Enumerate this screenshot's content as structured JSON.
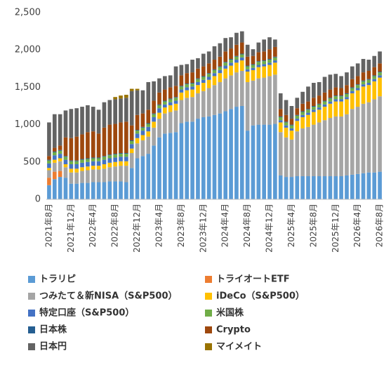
{
  "chart_data": {
    "type": "stacked_bar",
    "categories": [
      "2021年8月",
      null,
      null,
      null,
      "2021年12月",
      null,
      null,
      null,
      "2022年4月",
      null,
      null,
      null,
      "2022年8月",
      null,
      null,
      null,
      "2022年12月",
      null,
      null,
      null,
      "2023年4月",
      null,
      null,
      null,
      "2023年8月",
      null,
      null,
      null,
      "2023年12月",
      null,
      null,
      null,
      "2024年4月",
      null,
      null,
      null,
      "2024年8月",
      null,
      null,
      null,
      "2024年12月",
      null,
      null,
      null,
      "2025年4月",
      null,
      null,
      null,
      "2025年8月",
      null,
      null,
      null,
      "2025年12月",
      null,
      null,
      null,
      "2026年4月",
      null,
      null,
      null,
      "2026年8月"
    ],
    "ylim": [
      0,
      2500
    ],
    "yticks": [
      0,
      500,
      {
        "value": 1000,
        "label": "1,000"
      },
      {
        "value": 1500,
        "label": "1,500"
      },
      {
        "value": 2000,
        "label": "2,000"
      },
      {
        "value": 2500,
        "label": "2,500"
      }
    ],
    "grid": false,
    "legend": "bottom",
    "series": [
      {
        "name": "トラリピ",
        "color": "#5b9bd5",
        "values": [
          190,
          270,
          300,
          290,
          210,
          210,
          220,
          220,
          230,
          230,
          230,
          240,
          240,
          240,
          230,
          420,
          550,
          580,
          610,
          720,
          830,
          880,
          890,
          900,
          1020,
          1040,
          1040,
          1080,
          1100,
          1110,
          1130,
          1150,
          1180,
          1210,
          1240,
          1250,
          920,
          990,
          1000,
          1000,
          1000,
          1010,
          320,
          300,
          300,
          310,
          310,
          310,
          310,
          310,
          310,
          310,
          310,
          310,
          320,
          330,
          340,
          350,
          360,
          360,
          370
        ]
      },
      {
        "name": "トライオートETF",
        "color": "#ed7d31",
        "values": [
          100,
          100,
          80,
          0,
          0,
          0,
          0,
          0,
          0,
          0,
          0,
          0,
          0,
          0,
          0,
          0,
          0,
          0,
          0,
          0,
          0,
          0,
          0,
          0,
          0,
          0,
          0,
          0,
          0,
          0,
          0,
          0,
          0,
          0,
          0,
          0,
          0,
          0,
          0,
          0,
          0,
          0,
          0,
          0,
          0,
          0,
          0,
          0,
          0,
          0,
          0,
          0,
          0,
          0,
          0,
          0,
          0,
          0,
          0,
          0,
          0
        ]
      },
      {
        "name": "つみたて＆新NISA（S&P500）",
        "color": "#a5a5a5",
        "values": [
          100,
          120,
          130,
          140,
          150,
          150,
          160,
          170,
          170,
          170,
          180,
          190,
          200,
          210,
          220,
          200,
          200,
          210,
          230,
          240,
          250,
          270,
          280,
          290,
          310,
          320,
          330,
          340,
          350,
          380,
          400,
          420,
          440,
          450,
          460,
          470,
          650,
          600,
          620,
          630,
          650,
          660,
          580,
          530,
          500,
          600,
          640,
          660,
          690,
          720,
          750,
          780,
          800,
          800,
          820,
          880,
          900,
          930,
          940,
          980,
          1010
        ]
      },
      {
        "name": "iDeCo（S&P500）",
        "color": "#ffc000",
        "values": [
          30,
          40,
          40,
          40,
          50,
          50,
          50,
          50,
          50,
          50,
          60,
          60,
          60,
          60,
          60,
          60,
          70,
          70,
          70,
          80,
          80,
          80,
          90,
          90,
          100,
          100,
          100,
          110,
          110,
          110,
          120,
          120,
          130,
          130,
          130,
          140,
          140,
          140,
          150,
          150,
          150,
          160,
          130,
          130,
          120,
          140,
          150,
          160,
          170,
          170,
          180,
          190,
          200,
          200,
          200,
          210,
          220,
          230,
          230,
          240,
          250
        ]
      },
      {
        "name": "特定口座（S&P500）",
        "color": "#4472c4",
        "values": [
          60,
          60,
          60,
          60,
          60,
          60,
          60,
          60,
          60,
          60,
          60,
          60,
          60,
          60,
          60,
          60,
          60,
          60,
          60,
          60,
          60,
          40,
          40,
          40,
          40,
          40,
          40,
          40,
          40,
          40,
          40,
          40,
          40,
          40,
          40,
          40,
          30,
          30,
          30,
          30,
          30,
          30,
          30,
          30,
          30,
          30,
          30,
          30,
          30,
          30,
          30,
          30,
          30,
          30,
          30,
          30,
          30,
          30,
          30,
          30,
          30
        ]
      },
      {
        "name": "米国株",
        "color": "#70ad47",
        "values": [
          40,
          40,
          40,
          40,
          40,
          40,
          40,
          40,
          40,
          40,
          40,
          40,
          40,
          40,
          40,
          40,
          40,
          40,
          40,
          40,
          40,
          40,
          40,
          40,
          40,
          40,
          40,
          40,
          40,
          40,
          40,
          40,
          40,
          40,
          40,
          40,
          40,
          40,
          40,
          40,
          40,
          40,
          40,
          40,
          40,
          40,
          40,
          40,
          40,
          40,
          40,
          40,
          40,
          40,
          40,
          40,
          40,
          40,
          40,
          40,
          40
        ]
      },
      {
        "name": "日本株",
        "color": "#255e91",
        "values": [
          10,
          10,
          10,
          10,
          10,
          10,
          10,
          10,
          10,
          10,
          10,
          10,
          10,
          10,
          10,
          10,
          10,
          10,
          10,
          10,
          10,
          10,
          10,
          10,
          10,
          10,
          10,
          10,
          10,
          10,
          10,
          10,
          10,
          10,
          10,
          10,
          10,
          10,
          10,
          10,
          10,
          10,
          10,
          10,
          10,
          10,
          10,
          10,
          10,
          10,
          10,
          10,
          10,
          10,
          10,
          10,
          10,
          10,
          10,
          10,
          10
        ]
      },
      {
        "name": "Crypto",
        "color": "#9e480e",
        "values": [
          50,
          50,
          60,
          250,
          300,
          320,
          330,
          350,
          350,
          320,
          380,
          400,
          400,
          410,
          420,
          200,
          200,
          180,
          180,
          170,
          160,
          150,
          150,
          150,
          140,
          140,
          140,
          130,
          130,
          130,
          130,
          130,
          140,
          140,
          150,
          150,
          120,
          110,
          120,
          120,
          130,
          130,
          100,
          90,
          80,
          90,
          100,
          100,
          110,
          110,
          110,
          110,
          110,
          100,
          110,
          110,
          110,
          110,
          110,
          110,
          110
        ]
      },
      {
        "name": "日本円",
        "color": "#636363",
        "values": [
          450,
          450,
          420,
          360,
          390,
          380,
          370,
          360,
          330,
          320,
          340,
          330,
          330,
          320,
          320,
          460,
          330,
          310,
          370,
          260,
          190,
          180,
          160,
          260,
          140,
          120,
          170,
          140,
          170,
          160,
          180,
          180,
          180,
          150,
          160,
          150,
          160,
          90,
          130,
          160,
          160,
          100,
          210,
          200,
          170,
          140,
          160,
          200,
          200,
          180,
          210,
          200,
          180,
          160,
          170,
          170,
          170,
          180,
          150,
          150,
          160
        ]
      },
      {
        "name": "マイメイト",
        "color": "#997300",
        "values": [
          0,
          0,
          0,
          0,
          0,
          0,
          0,
          0,
          0,
          0,
          0,
          0,
          30,
          40,
          40,
          30,
          20,
          0,
          0,
          0,
          0,
          0,
          0,
          0,
          0,
          0,
          0,
          0,
          0,
          0,
          0,
          0,
          0,
          0,
          0,
          0,
          0,
          0,
          0,
          0,
          0,
          0,
          0,
          0,
          0,
          0,
          0,
          0,
          0,
          0,
          0,
          0,
          0,
          0,
          0,
          0,
          0,
          0,
          0,
          0,
          0
        ]
      }
    ]
  }
}
